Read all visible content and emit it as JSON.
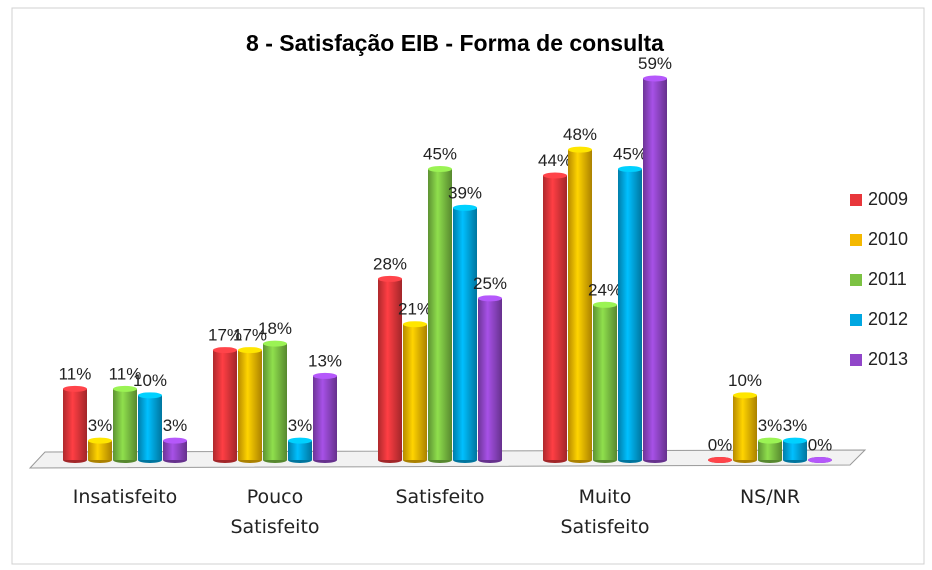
{
  "chart_data": {
    "type": "bar",
    "title": "8 - Satisfação EIB - Forma de consulta",
    "categories": [
      "Insatisfeito",
      "Pouco Satisfeito",
      "Satisfeito",
      "Muito Satisfeito",
      "NS/NR"
    ],
    "ylim": [
      0,
      60
    ],
    "legend": "right",
    "series": [
      {
        "name": "2009",
        "color": "#e8363b",
        "values": [
          11,
          17,
          28,
          44,
          0
        ],
        "value_labels": [
          "11%",
          "17%",
          "28%",
          "44%",
          "0%"
        ]
      },
      {
        "name": "2010",
        "color": "#f4b800",
        "values": [
          3,
          17,
          21,
          48,
          10
        ],
        "value_labels": [
          "3%",
          "17%",
          "21%",
          "48%",
          "10%"
        ]
      },
      {
        "name": "2011",
        "color": "#7cc243",
        "values": [
          11,
          18,
          45,
          24,
          3
        ],
        "value_labels": [
          "11%",
          "18%",
          "45%",
          "24%",
          "3%"
        ]
      },
      {
        "name": "2012",
        "color": "#00a7e1",
        "values": [
          10,
          3,
          39,
          45,
          3
        ],
        "value_labels": [
          "10%",
          "3%",
          "39%",
          "45%",
          "3%"
        ]
      },
      {
        "name": "2013",
        "color": "#9146c9",
        "values": [
          3,
          13,
          25,
          59,
          0
        ],
        "value_labels": [
          "3%",
          "13%",
          "25%",
          "59%",
          "0%"
        ]
      }
    ]
  }
}
